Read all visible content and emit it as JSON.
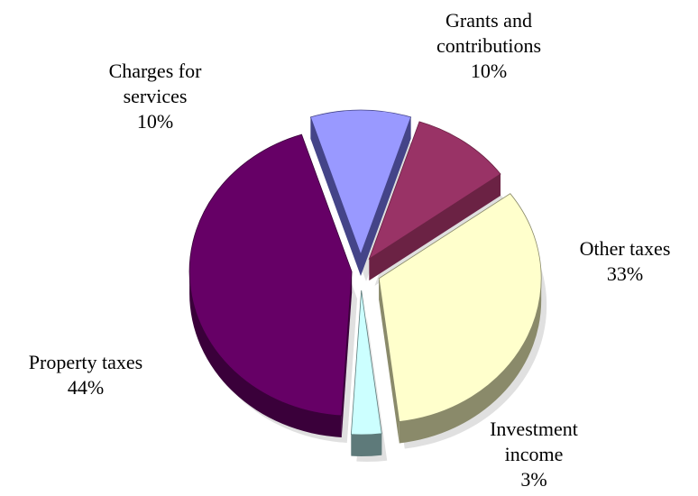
{
  "chart_data": {
    "type": "pie",
    "style": "3d-exploded",
    "slices": [
      {
        "label_lines": [
          "Grants and",
          "contributions"
        ],
        "percent_label": "10%",
        "value": 10,
        "color": "#993366",
        "side_color": "#6b2244"
      },
      {
        "label_lines": [
          "Other taxes"
        ],
        "percent_label": "33%",
        "value": 33,
        "color": "#ffffcc",
        "side_color": "#8a8a6a"
      },
      {
        "label_lines": [
          "Investment",
          "income"
        ],
        "percent_label": "3%",
        "value": 3,
        "color": "#ccffff",
        "side_color": "#5e7a7a"
      },
      {
        "label_lines": [
          "Property taxes"
        ],
        "percent_label": "44%",
        "value": 44,
        "color": "#660066",
        "side_color": "#3a003a"
      },
      {
        "label_lines": [
          "Charges for",
          "services"
        ],
        "percent_label": "10%",
        "value": 10,
        "color": "#9999ff",
        "side_color": "#444488"
      }
    ]
  }
}
